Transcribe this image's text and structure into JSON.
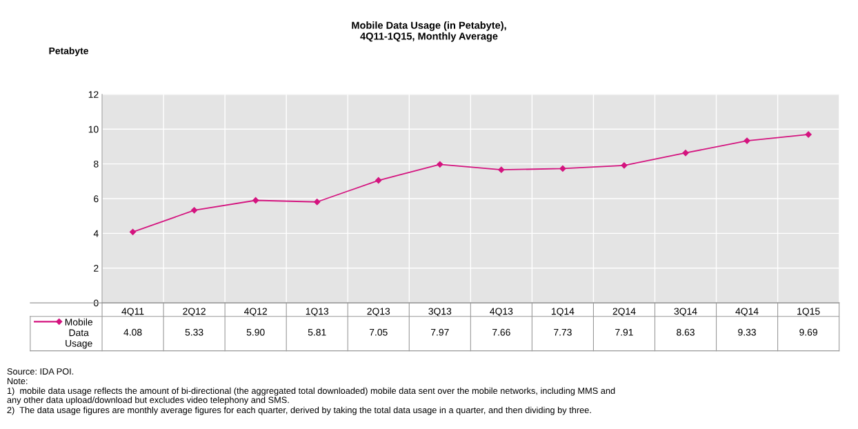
{
  "chart_data": {
    "type": "line",
    "title": "Mobile Data Usage (in Petabyte),\n4Q11-1Q15, Monthly Average",
    "ylabel": "Petabyte",
    "categories": [
      "4Q11",
      "2Q12",
      "4Q12",
      "1Q13",
      "2Q13",
      "3Q13",
      "4Q13",
      "1Q14",
      "2Q14",
      "3Q14",
      "4Q14",
      "1Q15"
    ],
    "series": [
      {
        "name": "Mobile Data Usage",
        "color": "#d4147f",
        "values": [
          4.08,
          5.33,
          5.9,
          5.81,
          7.05,
          7.97,
          7.66,
          7.73,
          7.91,
          8.63,
          9.33,
          9.69
        ]
      }
    ],
    "value_labels": [
      "4.08",
      "5.33",
      "5.90",
      "5.81",
      "7.05",
      "7.97",
      "7.66",
      "7.73",
      "7.91",
      "8.63",
      "9.33",
      "9.69"
    ],
    "ylim": [
      0,
      12
    ],
    "yticks": [
      0,
      2,
      4,
      6,
      8,
      10,
      12
    ],
    "grid": true,
    "marker": "diamond",
    "line_style": "solid",
    "legend": "bottom left",
    "annotations": [
      "Source: IDA POI.",
      "Note:",
      "1)  mobile data usage reflects the amount of bi-directional (the aggregated total downloaded) mobile data sent over the mobile networks, including MMS and\nany other data upload/download but excludes video telephony and SMS.",
      "2)  The data usage figures are monthly average figures for each quarter, derived by taking the total data usage in a quarter, and then dividing by three."
    ]
  }
}
